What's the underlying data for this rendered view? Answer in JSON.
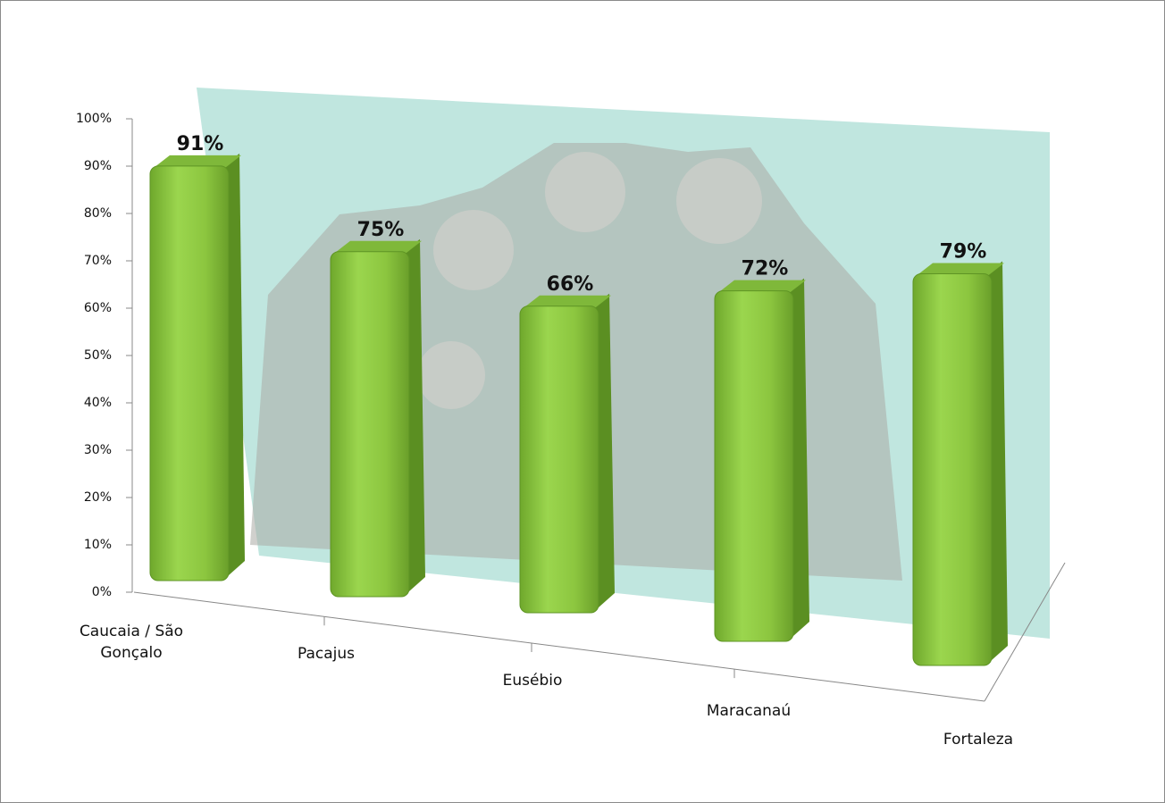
{
  "chart_data": {
    "type": "bar3d",
    "categories": [
      "Caucaia / São Gonçalo",
      "Pacajus",
      "Eusébio",
      "Maracanaú",
      "Fortaleza"
    ],
    "values": [
      91,
      75,
      66,
      72,
      79
    ],
    "value_labels": [
      "91%",
      "75%",
      "66%",
      "72%",
      "79%"
    ],
    "color": "#8cc63f",
    "ylim": [
      0,
      100
    ],
    "yticks": [
      {
        "value": 0,
        "label": "0%"
      },
      {
        "value": 10,
        "label": "10%"
      },
      {
        "value": 20,
        "label": "20%"
      },
      {
        "value": 30,
        "label": "30%"
      },
      {
        "value": 40,
        "label": "40%"
      },
      {
        "value": 50,
        "label": "50%"
      },
      {
        "value": 60,
        "label": "60%"
      },
      {
        "value": 70,
        "label": "70%"
      },
      {
        "value": 80,
        "label": "80%"
      },
      {
        "value": 90,
        "label": "90%"
      },
      {
        "value": 100,
        "label": "100%"
      }
    ]
  }
}
